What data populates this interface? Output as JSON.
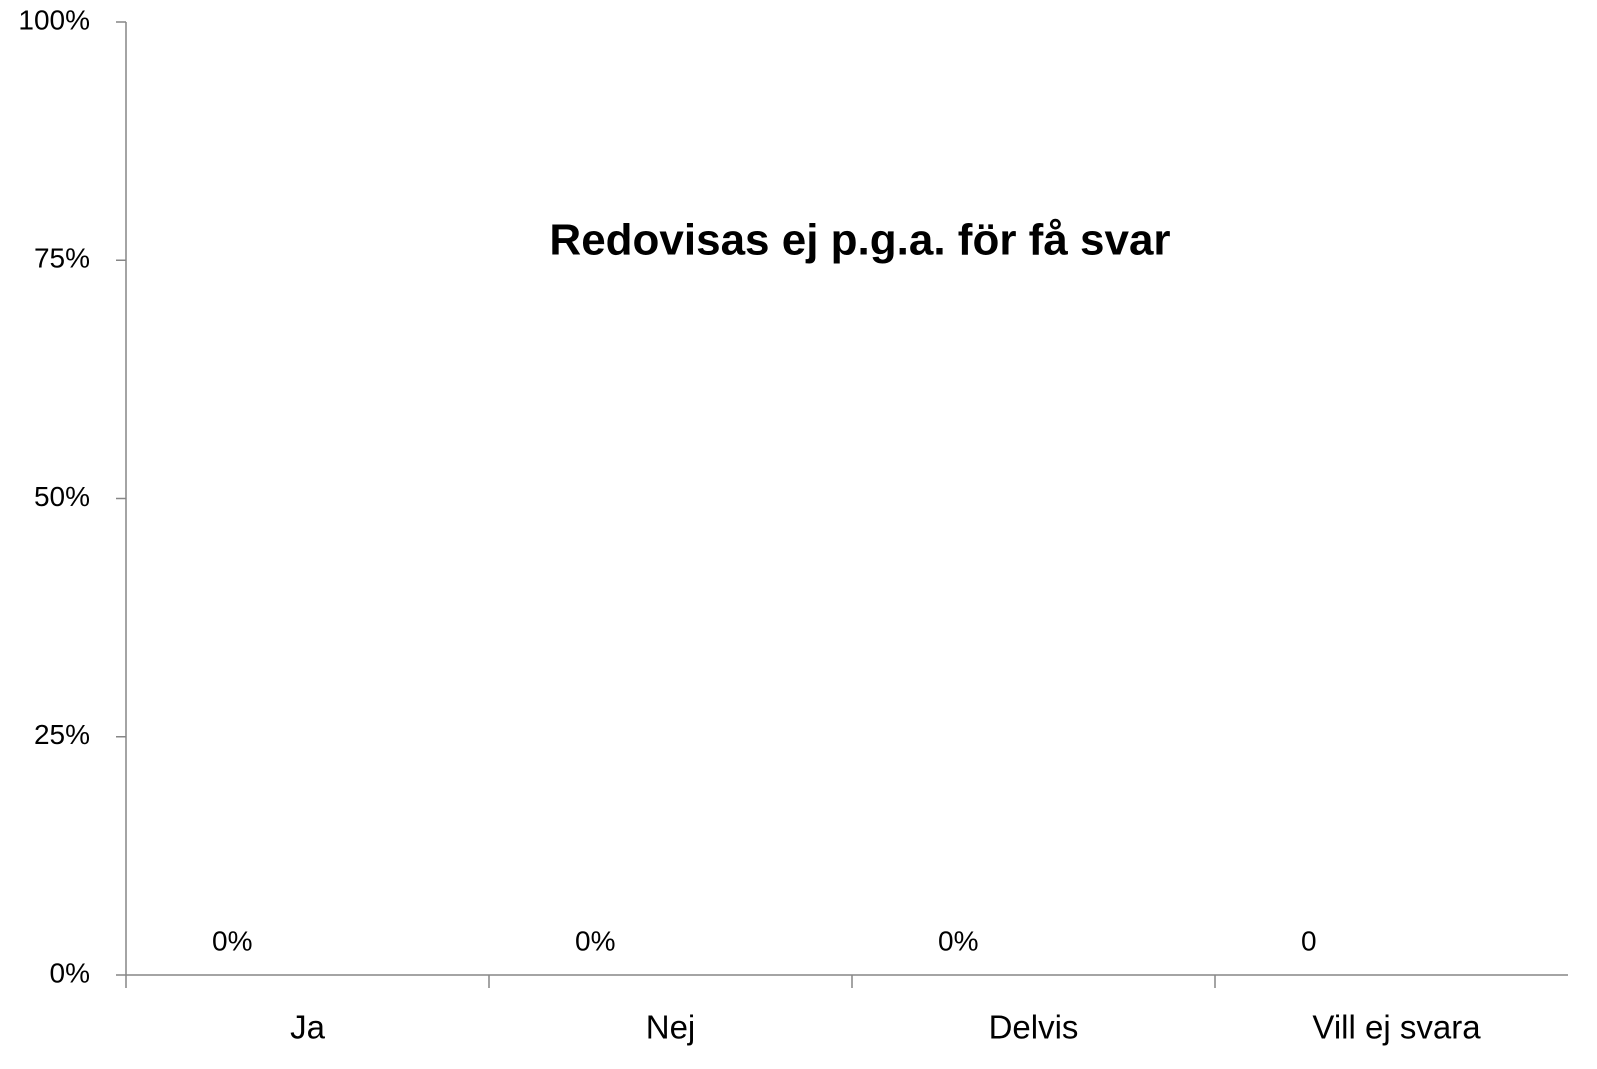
{
  "chart_data": {
    "type": "bar",
    "annotation": "Redovisas ej p.g.a. för få svar",
    "categories": [
      "Ja",
      "Nej",
      "Delvis",
      "Vill ej svara"
    ],
    "values": [
      0,
      0,
      0,
      0
    ],
    "value_labels": [
      "0%",
      "0%",
      "0%",
      "0"
    ],
    "ylim": [
      0,
      100
    ],
    "yticks": [
      {
        "value": 0,
        "label": "0%"
      },
      {
        "value": 25,
        "label": "25%"
      },
      {
        "value": 50,
        "label": "50%"
      },
      {
        "value": 75,
        "label": "75%"
      },
      {
        "value": 100,
        "label": "100%"
      }
    ]
  }
}
